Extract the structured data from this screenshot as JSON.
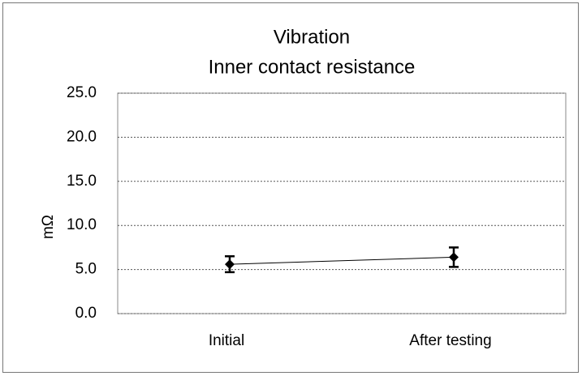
{
  "chart_data": {
    "type": "line",
    "title": "Vibration",
    "subtitle": "Inner contact resistance",
    "y_label": "mΩ",
    "categories": [
      "Initial",
      "After testing"
    ],
    "values": [
      5.6,
      6.4
    ],
    "errors": [
      0.9,
      1.1
    ],
    "color": "#000000",
    "ylim": [
      0,
      25
    ],
    "yticks": [
      {
        "value": 0,
        "label": "0.0"
      },
      {
        "value": 5,
        "label": "5.0"
      },
      {
        "value": 10,
        "label": "10.0"
      },
      {
        "value": 15,
        "label": "15.0"
      },
      {
        "value": 20,
        "label": "20.0"
      },
      {
        "value": 25,
        "label": "25.0"
      }
    ],
    "grid": true
  }
}
